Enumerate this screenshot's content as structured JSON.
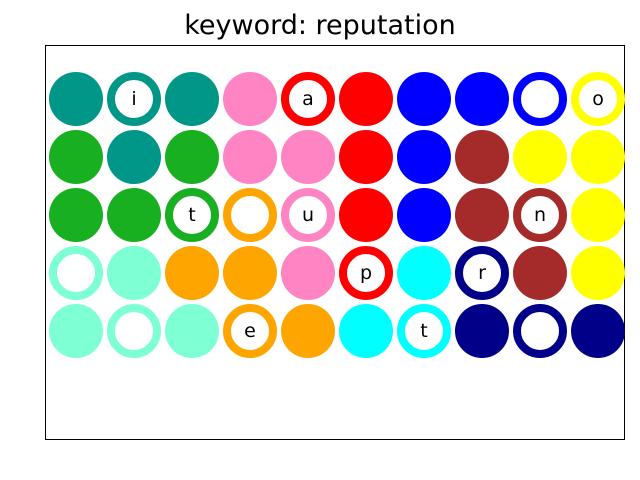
{
  "title": "keyword: reputation",
  "colors": {
    "teal": "#009688",
    "green": "#18b020",
    "pink": "#ff84c4",
    "red": "#ff0000",
    "blue": "#0000ff",
    "brown": "#a52a2a",
    "yellow": "#ffff00",
    "orange": "#ffa500",
    "aquamarine": "#7fffd4",
    "cyan": "#00ffff",
    "navy": "#000088"
  },
  "grid": [
    [
      {
        "color": "teal",
        "style": "filled",
        "letter": ""
      },
      {
        "color": "teal",
        "style": "ring",
        "letter": "i"
      },
      {
        "color": "teal",
        "style": "filled",
        "letter": ""
      },
      {
        "color": "pink",
        "style": "filled",
        "letter": ""
      },
      {
        "color": "red",
        "style": "ring",
        "letter": "a"
      },
      {
        "color": "red",
        "style": "filled",
        "letter": ""
      },
      {
        "color": "blue",
        "style": "filled",
        "letter": ""
      },
      {
        "color": "blue",
        "style": "filled",
        "letter": ""
      },
      {
        "color": "blue",
        "style": "ring",
        "letter": ""
      },
      {
        "color": "yellow",
        "style": "ring",
        "letter": "o"
      }
    ],
    [
      {
        "color": "green",
        "style": "filled",
        "letter": ""
      },
      {
        "color": "teal",
        "style": "filled",
        "letter": ""
      },
      {
        "color": "green",
        "style": "filled",
        "letter": ""
      },
      {
        "color": "pink",
        "style": "filled",
        "letter": ""
      },
      {
        "color": "pink",
        "style": "filled",
        "letter": ""
      },
      {
        "color": "red",
        "style": "filled",
        "letter": ""
      },
      {
        "color": "blue",
        "style": "filled",
        "letter": ""
      },
      {
        "color": "brown",
        "style": "filled",
        "letter": ""
      },
      {
        "color": "yellow",
        "style": "filled",
        "letter": ""
      },
      {
        "color": "yellow",
        "style": "filled",
        "letter": ""
      }
    ],
    [
      {
        "color": "green",
        "style": "filled",
        "letter": ""
      },
      {
        "color": "green",
        "style": "filled",
        "letter": ""
      },
      {
        "color": "green",
        "style": "ring",
        "letter": "t"
      },
      {
        "color": "orange",
        "style": "ring",
        "letter": ""
      },
      {
        "color": "pink",
        "style": "ring",
        "letter": "u"
      },
      {
        "color": "red",
        "style": "filled",
        "letter": ""
      },
      {
        "color": "blue",
        "style": "filled",
        "letter": ""
      },
      {
        "color": "brown",
        "style": "filled",
        "letter": ""
      },
      {
        "color": "brown",
        "style": "ring",
        "letter": "n"
      },
      {
        "color": "yellow",
        "style": "filled",
        "letter": ""
      }
    ],
    [
      {
        "color": "aquamarine",
        "style": "ring",
        "letter": ""
      },
      {
        "color": "aquamarine",
        "style": "filled",
        "letter": ""
      },
      {
        "color": "orange",
        "style": "filled",
        "letter": ""
      },
      {
        "color": "orange",
        "style": "filled",
        "letter": ""
      },
      {
        "color": "pink",
        "style": "filled",
        "letter": ""
      },
      {
        "color": "red",
        "style": "ring",
        "letter": "p"
      },
      {
        "color": "cyan",
        "style": "filled",
        "letter": ""
      },
      {
        "color": "navy",
        "style": "ring",
        "letter": "r"
      },
      {
        "color": "brown",
        "style": "filled",
        "letter": ""
      },
      {
        "color": "yellow",
        "style": "filled",
        "letter": ""
      }
    ],
    [
      {
        "color": "aquamarine",
        "style": "filled",
        "letter": ""
      },
      {
        "color": "aquamarine",
        "style": "ring",
        "letter": ""
      },
      {
        "color": "aquamarine",
        "style": "filled",
        "letter": ""
      },
      {
        "color": "orange",
        "style": "ring",
        "letter": "e"
      },
      {
        "color": "orange",
        "style": "filled",
        "letter": ""
      },
      {
        "color": "cyan",
        "style": "filled",
        "letter": ""
      },
      {
        "color": "cyan",
        "style": "ring",
        "letter": "t"
      },
      {
        "color": "navy",
        "style": "filled",
        "letter": ""
      },
      {
        "color": "navy",
        "style": "ring",
        "letter": ""
      },
      {
        "color": "navy",
        "style": "filled",
        "letter": ""
      }
    ]
  ]
}
